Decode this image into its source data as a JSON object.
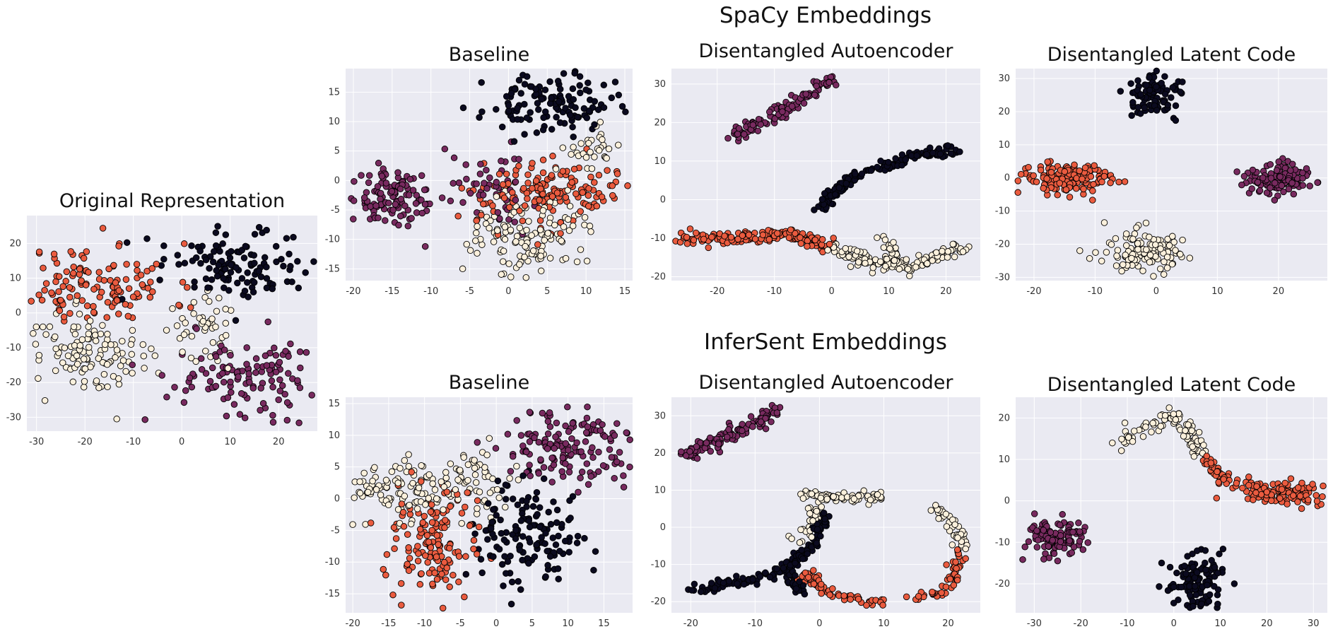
{
  "section_titles": [
    "SpaCy Embeddings",
    "InferSent Embeddings"
  ],
  "colors": {
    "background": "#eaeaf2",
    "grid": "#ffffff",
    "class_black": "#0b0a1f",
    "class_purple": "#782a5f",
    "class_orange": "#ea5b3f",
    "class_cream": "#fbf0dc",
    "edge": "#000000"
  },
  "chart_data": [
    {
      "type": "scatter",
      "title": "Original Representation",
      "xlim": [
        -32,
        28
      ],
      "ylim": [
        -34,
        28
      ],
      "xticks": [
        -30,
        -20,
        -10,
        0,
        10,
        20
      ],
      "yticks": [
        -30,
        -20,
        -10,
        0,
        10,
        20
      ],
      "grid": true,
      "clusters": [
        {
          "class": "orange",
          "center": [
            -18,
            8
          ],
          "spread": [
            8,
            6
          ],
          "count": 130,
          "seed": 11
        },
        {
          "class": "cream",
          "center": [
            -18,
            -12
          ],
          "spread": [
            7,
            6
          ],
          "count": 120,
          "seed": 12
        },
        {
          "class": "cream",
          "center": [
            5,
            -4
          ],
          "spread": [
            3,
            5
          ],
          "count": 40,
          "seed": 13
        },
        {
          "class": "black",
          "center": [
            12,
            14
          ],
          "spread": [
            8,
            5
          ],
          "count": 120,
          "seed": 14
        },
        {
          "class": "purple",
          "center": [
            15,
            -18
          ],
          "spread": [
            8,
            6
          ],
          "count": 120,
          "seed": 15
        }
      ]
    },
    {
      "type": "scatter",
      "title": "Baseline",
      "xlim": [
        -21,
        16
      ],
      "ylim": [
        -17,
        19
      ],
      "xticks": [
        -20,
        -15,
        -10,
        -5,
        0,
        5,
        10,
        15
      ],
      "yticks": [
        -15,
        -10,
        -5,
        0,
        5,
        10,
        15
      ],
      "grid": true,
      "clusters": [
        {
          "class": "purple",
          "center": [
            -15,
            -3.5
          ],
          "spread": [
            3,
            2.5
          ],
          "count": 120,
          "seed": 21
        },
        {
          "class": "purple",
          "center": [
            -3,
            -1
          ],
          "spread": [
            3,
            3
          ],
          "count": 50,
          "seed": 22
        },
        {
          "class": "black",
          "center": [
            5,
            13
          ],
          "spread": [
            4,
            2.5
          ],
          "count": 130,
          "seed": 23
        },
        {
          "class": "orange",
          "center": [
            4,
            -2
          ],
          "spread": [
            5,
            3
          ],
          "count": 150,
          "seed": 24
        },
        {
          "class": "cream",
          "center": [
            3,
            -10
          ],
          "spread": [
            4,
            3
          ],
          "count": 130,
          "seed": 25
        },
        {
          "class": "cream",
          "center": [
            11,
            6
          ],
          "spread": [
            2,
            2
          ],
          "count": 30,
          "seed": 26
        }
      ]
    },
    {
      "type": "scatter",
      "title": "Disentangled Autoencoder",
      "xlim": [
        -28,
        26
      ],
      "ylim": [
        -21,
        34
      ],
      "xticks": [
        -20,
        -10,
        0,
        10,
        20
      ],
      "yticks": [
        -20,
        -10,
        0,
        10,
        20,
        30
      ],
      "grid": true,
      "curves": [
        {
          "class": "purple",
          "points": [
            [
              -18,
              16
            ],
            [
              -10,
              22
            ],
            [
              -3,
              28
            ],
            [
              0,
              31
            ]
          ],
          "count": 110,
          "jitter": 0.8,
          "seed": 31
        },
        {
          "class": "black",
          "points": [
            [
              -2,
              -2
            ],
            [
              4,
              6
            ],
            [
              13,
              11
            ],
            [
              22,
              13
            ]
          ],
          "count": 140,
          "jitter": 0.7,
          "seed": 32
        },
        {
          "class": "orange",
          "points": [
            [
              -27,
              -10
            ],
            [
              -18,
              -10
            ],
            [
              -8,
              -9
            ],
            [
              0,
              -12
            ]
          ],
          "count": 160,
          "jitter": 0.8,
          "seed": 33
        },
        {
          "class": "cream",
          "points": [
            [
              0,
              -12
            ],
            [
              8,
              -17
            ],
            [
              16,
              -17
            ],
            [
              23,
              -12
            ]
          ],
          "count": 130,
          "jitter": 0.9,
          "seed": 34
        },
        {
          "class": "cream",
          "points": [
            [
              9,
              -10
            ],
            [
              11,
              -14
            ],
            [
              10,
              -17
            ]
          ],
          "count": 30,
          "jitter": 0.7,
          "seed": 35
        }
      ]
    },
    {
      "type": "scatter",
      "title": "Disentangled Latent Code",
      "xlim": [
        -23,
        28
      ],
      "ylim": [
        -31,
        33
      ],
      "xticks": [
        -20,
        -10,
        0,
        10,
        20
      ],
      "yticks": [
        -30,
        -20,
        -10,
        0,
        10,
        20,
        30
      ],
      "grid": true,
      "clusters": [
        {
          "class": "black",
          "center": [
            0,
            25
          ],
          "spread": [
            2.5,
            3
          ],
          "count": 90,
          "seed": 41
        },
        {
          "class": "orange",
          "center": [
            -15,
            0
          ],
          "spread": [
            4,
            2.5
          ],
          "count": 140,
          "seed": 42
        },
        {
          "class": "purple",
          "center": [
            20,
            0
          ],
          "spread": [
            3,
            2.5
          ],
          "count": 120,
          "seed": 43
        },
        {
          "class": "cream",
          "center": [
            -2,
            -22
          ],
          "spread": [
            3.5,
            3.5
          ],
          "count": 120,
          "seed": 44
        }
      ]
    },
    {
      "type": "scatter",
      "title": "Baseline",
      "xlim": [
        -21,
        19
      ],
      "ylim": [
        -18,
        16
      ],
      "xticks": [
        -20,
        -15,
        -10,
        -5,
        0,
        5,
        10,
        15
      ],
      "yticks": [
        -15,
        -10,
        -5,
        0,
        5,
        10,
        15
      ],
      "grid": true,
      "clusters": [
        {
          "class": "purple",
          "center": [
            10,
            8
          ],
          "spread": [
            5,
            3
          ],
          "count": 150,
          "seed": 51
        },
        {
          "class": "cream",
          "center": [
            -14,
            1
          ],
          "spread": [
            4,
            2.5
          ],
          "count": 110,
          "seed": 52
        },
        {
          "class": "cream",
          "center": [
            -3,
            3
          ],
          "spread": [
            3,
            3
          ],
          "count": 60,
          "seed": 53
        },
        {
          "class": "orange",
          "center": [
            -9,
            -6
          ],
          "spread": [
            3,
            5
          ],
          "count": 140,
          "seed": 54
        },
        {
          "class": "black",
          "center": [
            4,
            -6
          ],
          "spread": [
            4,
            4
          ],
          "count": 140,
          "seed": 55
        }
      ]
    },
    {
      "type": "scatter",
      "title": "Disentangled Autoencoder",
      "xlim": [
        -23,
        25
      ],
      "ylim": [
        -23,
        35
      ],
      "xticks": [
        -20,
        -10,
        0,
        10,
        20
      ],
      "yticks": [
        -20,
        -10,
        0,
        10,
        20,
        30
      ],
      "grid": true,
      "curves": [
        {
          "class": "purple",
          "points": [
            [
              -21,
              19
            ],
            [
              -15,
              24
            ],
            [
              -10,
              28
            ],
            [
              -7,
              32
            ]
          ],
          "count": 110,
          "jitter": 1.0,
          "seed": 61
        },
        {
          "class": "cream",
          "points": [
            [
              -3,
              9
            ],
            [
              3,
              8
            ],
            [
              10,
              8
            ]
          ],
          "count": 70,
          "jitter": 0.6,
          "seed": 62
        },
        {
          "class": "cream",
          "points": [
            [
              0,
              8
            ],
            [
              -1,
              3
            ],
            [
              -3,
              -4
            ]
          ],
          "count": 30,
          "jitter": 0.7,
          "seed": 63
        },
        {
          "class": "black",
          "points": [
            [
              -20,
              -17
            ],
            [
              -10,
              -14
            ],
            [
              -5,
              -11
            ],
            [
              -1,
              -5
            ],
            [
              1,
              3
            ]
          ],
          "count": 140,
          "jitter": 0.6,
          "seed": 64
        },
        {
          "class": "black",
          "points": [
            [
              -5,
              -11
            ],
            [
              -4,
              -16
            ],
            [
              -2,
              -18
            ]
          ],
          "count": 30,
          "jitter": 0.6,
          "seed": 65
        },
        {
          "class": "orange",
          "points": [
            [
              -3,
              -12
            ],
            [
              2,
              -18
            ],
            [
              7,
              -20
            ],
            [
              10,
              -20
            ]
          ],
          "count": 60,
          "jitter": 0.6,
          "seed": 66
        },
        {
          "class": "cream",
          "points": [
            [
              18,
              6
            ],
            [
              21,
              0
            ],
            [
              22,
              -6
            ]
          ],
          "count": 40,
          "jitter": 0.6,
          "seed": 67
        },
        {
          "class": "orange",
          "points": [
            [
              22,
              -6
            ],
            [
              21,
              -13
            ],
            [
              19,
              -17
            ],
            [
              13,
              -20
            ]
          ],
          "count": 50,
          "jitter": 0.6,
          "seed": 68
        }
      ]
    },
    {
      "type": "scatter",
      "title": "Disentangled Latent Code",
      "xlim": [
        -34,
        33
      ],
      "ylim": [
        -27,
        25
      ],
      "xticks": [
        -30,
        -20,
        -10,
        0,
        10,
        20,
        30
      ],
      "yticks": [
        -20,
        -10,
        0,
        10,
        20
      ],
      "grid": true,
      "clusters": [
        {
          "class": "purple",
          "center": [
            -25,
            -9
          ],
          "spread": [
            3.5,
            2.5
          ],
          "count": 110,
          "seed": 71
        },
        {
          "class": "black",
          "center": [
            5,
            -20
          ],
          "spread": [
            3,
            3.5
          ],
          "count": 120,
          "seed": 72
        },
        {
          "class": "orange",
          "center": [
            24,
            2
          ],
          "spread": [
            5,
            1.5
          ],
          "count": 120,
          "seed": 73
        }
      ],
      "curves": [
        {
          "class": "cream",
          "points": [
            [
              -11,
              14
            ],
            [
              -5,
              19
            ],
            [
              0,
              21
            ],
            [
              4,
              16
            ],
            [
              6,
              11
            ]
          ],
          "count": 90,
          "jitter": 1.0,
          "seed": 74
        },
        {
          "class": "orange",
          "points": [
            [
              6,
              11
            ],
            [
              10,
              6
            ],
            [
              14,
              3
            ]
          ],
          "count": 40,
          "jitter": 0.8,
          "seed": 75
        }
      ]
    }
  ]
}
